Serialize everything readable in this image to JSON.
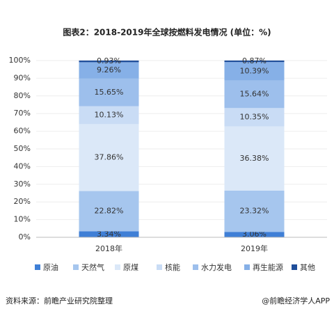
{
  "chart_data": {
    "type": "stacked_bar",
    "title": "图表2：2018-2019年全球按燃料发电情况 (单位：%)",
    "categories": [
      "2018年",
      "2019年"
    ],
    "series": [
      {
        "name": "原油",
        "color": "#3f7fd6",
        "values": [
          3.34,
          3.06
        ],
        "value_labels": [
          "3.34%",
          "3.06%"
        ]
      },
      {
        "name": "天然气",
        "color": "#a6c6ee",
        "values": [
          22.82,
          23.32
        ],
        "value_labels": [
          "22.82%",
          "23.32%"
        ]
      },
      {
        "name": "原煤",
        "color": "#dbe8f8",
        "values": [
          37.86,
          36.38
        ],
        "value_labels": [
          "37.86%",
          "36.38%"
        ]
      },
      {
        "name": "核能",
        "color": "#c9dcf5",
        "values": [
          10.13,
          10.35
        ],
        "value_labels": [
          "10.13%",
          "10.35%"
        ]
      },
      {
        "name": "水力发电",
        "color": "#9dbfec",
        "values": [
          15.65,
          15.64
        ],
        "value_labels": [
          "15.65%",
          "15.64%"
        ]
      },
      {
        "name": "再生能源",
        "color": "#86b0e7",
        "values": [
          9.26,
          10.39
        ],
        "value_labels": [
          "9.26%",
          "10.39%"
        ]
      },
      {
        "name": "其他",
        "color": "#1f4e9a",
        "values": [
          0.93,
          0.87
        ],
        "value_labels": [
          "0.93%",
          "0.87%"
        ]
      }
    ],
    "ylim": [
      0,
      100
    ],
    "yticks": [
      {
        "value": 0,
        "label": "0%"
      },
      {
        "value": 10,
        "label": "10%"
      },
      {
        "value": 20,
        "label": "20%"
      },
      {
        "value": 30,
        "label": "30%"
      },
      {
        "value": 40,
        "label": "40%"
      },
      {
        "value": 50,
        "label": "50%"
      },
      {
        "value": 60,
        "label": "60%"
      },
      {
        "value": 70,
        "label": "70%"
      },
      {
        "value": 80,
        "label": "80%"
      },
      {
        "value": 90,
        "label": "90%"
      },
      {
        "value": 100,
        "label": "100%"
      }
    ],
    "grid": true
  },
  "footer": {
    "source": "资料来源：前瞻产业研究院整理",
    "brand": "@前瞻经济学人APP"
  }
}
